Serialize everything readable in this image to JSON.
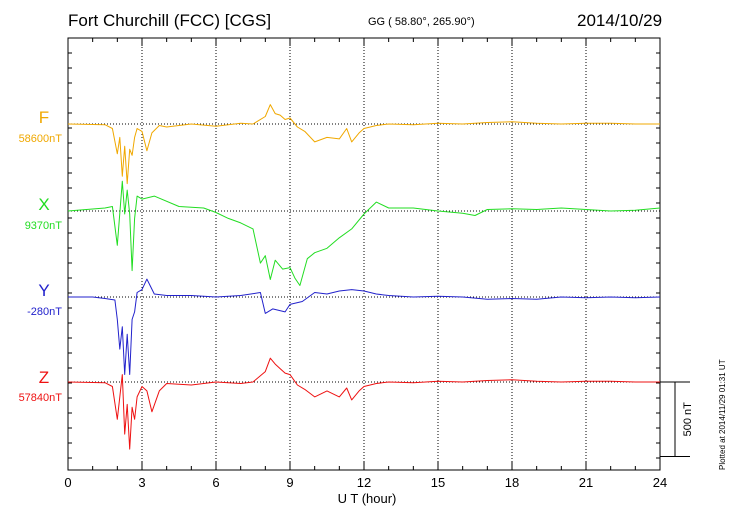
{
  "header": {
    "station": "Fort Churchill (FCC)  [CGS]",
    "coords": "GG ( 58.80°, 265.90°)",
    "date": "2014/10/29"
  },
  "plotted": "Plotted at 2014/11/29 01:31  UT",
  "chart_data": {
    "type": "line",
    "title": "Fort Churchill (FCC)  [CGS]",
    "xlabel": "U T (hour)",
    "xlim": [
      0,
      24
    ],
    "x_ticks": [
      0,
      3,
      6,
      9,
      12,
      15,
      18,
      21,
      24
    ],
    "scale_bar": {
      "label": "500 nT",
      "value_nT": 500
    },
    "series": [
      {
        "name": "F",
        "baseline_label": "58600nT",
        "baseline_nT": 58600,
        "color": "#f0a800",
        "x": [
          0,
          1.5,
          1.8,
          2.0,
          2.1,
          2.2,
          2.3,
          2.4,
          2.5,
          2.6,
          2.7,
          2.8,
          3.0,
          3.2,
          3.4,
          3.7,
          4.0,
          5.0,
          6.0,
          7.0,
          7.5,
          8.0,
          8.2,
          8.4,
          8.6,
          8.8,
          9.0,
          9.3,
          9.6,
          10.0,
          10.5,
          11.0,
          11.3,
          11.5,
          11.8,
          12.0,
          12.5,
          13.0,
          14.0,
          15.0,
          16.0,
          17.0,
          18.0,
          19.0,
          20.0,
          21.0,
          22.0,
          23.0,
          24.0
        ],
        "values": [
          0,
          -5,
          -30,
          -200,
          -90,
          -350,
          -150,
          -400,
          -170,
          -210,
          -90,
          -30,
          -50,
          -180,
          -60,
          -10,
          -20,
          0,
          -15,
          5,
          0,
          50,
          130,
          70,
          60,
          30,
          40,
          -20,
          -50,
          -120,
          -90,
          -100,
          -30,
          -120,
          -60,
          -30,
          -10,
          0,
          -5,
          5,
          0,
          10,
          15,
          5,
          0,
          5,
          5,
          0,
          0
        ]
      },
      {
        "name": "X",
        "baseline_label": "9370nT",
        "baseline_nT": 9370,
        "color": "#22dd22",
        "x": [
          0,
          1.5,
          1.8,
          2.0,
          2.2,
          2.3,
          2.4,
          2.5,
          2.6,
          2.7,
          2.8,
          3.0,
          3.5,
          4.5,
          5.5,
          6.0,
          6.5,
          7.0,
          7.5,
          7.8,
          8.0,
          8.2,
          8.4,
          8.7,
          9.0,
          9.2,
          9.4,
          9.7,
          10.0,
          10.5,
          11.0,
          11.5,
          12.0,
          12.5,
          13.0,
          14.0,
          15.0,
          16.0,
          16.5,
          17.0,
          18.0,
          19.0,
          20.0,
          21.0,
          22.0,
          23.0,
          24.0
        ],
        "values": [
          0,
          20,
          30,
          -230,
          200,
          -20,
          140,
          -20,
          -400,
          -50,
          100,
          80,
          100,
          30,
          20,
          -10,
          -50,
          -80,
          -120,
          -350,
          -300,
          -460,
          -330,
          -390,
          -380,
          -450,
          -500,
          -320,
          -280,
          -250,
          -180,
          -120,
          -20,
          60,
          20,
          20,
          0,
          -15,
          -30,
          10,
          15,
          10,
          20,
          10,
          0,
          5,
          20
        ]
      },
      {
        "name": "Y",
        "baseline_label": "-280nT",
        "baseline_nT": -280,
        "color": "#2222cc",
        "x": [
          0,
          1.0,
          1.5,
          1.9,
          2.0,
          2.1,
          2.2,
          2.3,
          2.4,
          2.5,
          2.6,
          2.7,
          2.8,
          3.0,
          3.2,
          3.5,
          4.0,
          5.0,
          6.0,
          7.0,
          7.8,
          8.0,
          8.3,
          8.8,
          9.0,
          9.5,
          10.0,
          10.5,
          11.0,
          11.5,
          12.0,
          12.5,
          13.0,
          14.0,
          15.0,
          16.0,
          17.0,
          18.0,
          19.0,
          20.0,
          21.0,
          22.0,
          23.0,
          24.0
        ],
        "values": [
          0,
          0,
          -10,
          -20,
          -150,
          -350,
          -200,
          -520,
          -250,
          -520,
          -150,
          -100,
          30,
          50,
          120,
          20,
          10,
          10,
          0,
          10,
          30,
          -110,
          -80,
          -100,
          -50,
          -30,
          30,
          20,
          40,
          50,
          40,
          20,
          10,
          0,
          5,
          0,
          -15,
          -10,
          -15,
          0,
          -5,
          0,
          -5,
          0
        ]
      },
      {
        "name": "Z",
        "baseline_label": "57840nT",
        "baseline_nT": 57840,
        "color": "#ee1111",
        "x": [
          0,
          1.5,
          1.8,
          2.0,
          2.2,
          2.3,
          2.4,
          2.5,
          2.6,
          2.7,
          2.8,
          3.0,
          3.2,
          3.4,
          3.7,
          4.0,
          5.0,
          6.0,
          7.0,
          7.5,
          8.0,
          8.2,
          8.4,
          8.6,
          8.8,
          9.0,
          9.3,
          9.6,
          10.0,
          10.5,
          11.0,
          11.3,
          11.5,
          11.8,
          12.0,
          12.5,
          13.0,
          14.0,
          15.0,
          16.0,
          17.0,
          18.0,
          19.0,
          20.0,
          21.0,
          22.0,
          23.0,
          24.0
        ],
        "values": [
          0,
          -5,
          -30,
          -250,
          50,
          -350,
          -150,
          -450,
          -170,
          -250,
          -100,
          -30,
          -60,
          -200,
          -60,
          -10,
          -20,
          0,
          -10,
          0,
          70,
          160,
          120,
          90,
          60,
          50,
          -20,
          -50,
          -100,
          -60,
          -100,
          -40,
          -120,
          -60,
          -30,
          -10,
          0,
          -5,
          5,
          0,
          10,
          15,
          5,
          0,
          5,
          5,
          0,
          0
        ]
      }
    ]
  }
}
